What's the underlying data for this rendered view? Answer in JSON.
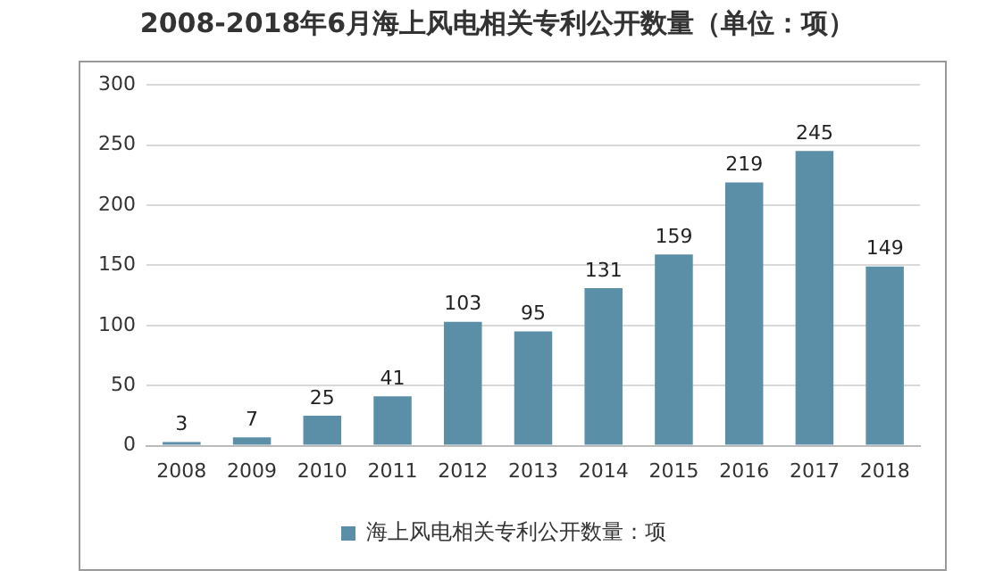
{
  "chart_data": {
    "type": "bar",
    "title": "2008-2018年6月海上风电相关专利公开数量（单位：项）",
    "categories": [
      "2008",
      "2009",
      "2010",
      "2011",
      "2012",
      "2013",
      "2014",
      "2015",
      "2016",
      "2017",
      "2018"
    ],
    "series": [
      {
        "name": "海上风电相关专利公开数量：项",
        "color": "#5b8fa8",
        "values": [
          3,
          7,
          25,
          41,
          103,
          95,
          131,
          159,
          219,
          245,
          149
        ]
      }
    ],
    "ylim": [
      0,
      300
    ],
    "yticks": [
      0,
      50,
      100,
      150,
      200,
      250,
      300
    ],
    "grid": "y",
    "legend": "bottom",
    "data_labels": true
  }
}
